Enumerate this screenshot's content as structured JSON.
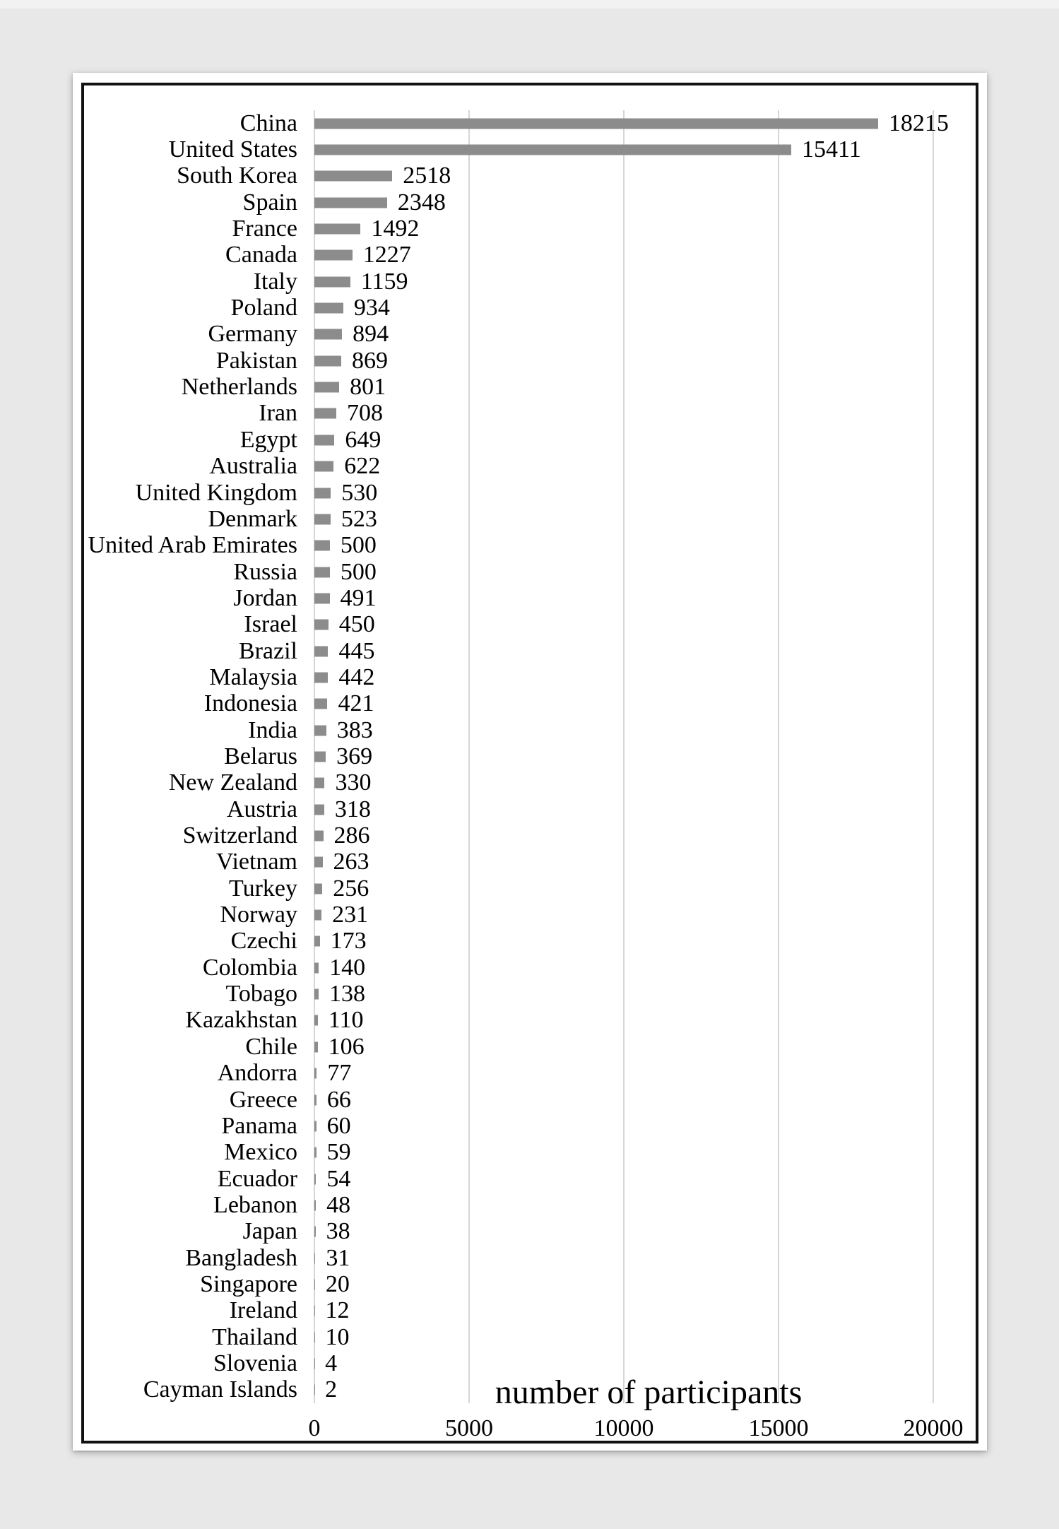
{
  "window": {
    "background_color": "#e8e8e8",
    "card_color": "#ffffff",
    "frame_border_color": "#121212"
  },
  "chart_data": {
    "type": "bar",
    "orientation": "horizontal",
    "title": "",
    "xlabel": "number of participants",
    "ylabel": "",
    "xlim": [
      0,
      20000
    ],
    "x_ticks": [
      0,
      5000,
      10000,
      15000,
      20000
    ],
    "x_tick_labels": [
      "0",
      "5000",
      "10000",
      "15000",
      "20000"
    ],
    "grid": true,
    "legend": false,
    "value_labels_shown": true,
    "bar_color": "#8c8c8c",
    "gridline_color": "#d6d6d6",
    "categories": [
      "China",
      "United States",
      "South Korea",
      "Spain",
      "France",
      "Canada",
      "Italy",
      "Poland",
      "Germany",
      "Pakistan",
      "Netherlands",
      "Iran",
      "Egypt",
      "Australia",
      "United Kingdom",
      "Denmark",
      "United Arab Emirates",
      "Russia",
      "Jordan",
      "Israel",
      "Brazil",
      "Malaysia",
      "Indonesia",
      "India",
      "Belarus",
      "New Zealand",
      "Austria",
      "Switzerland",
      "Vietnam",
      "Turkey",
      "Norway",
      "Czechi",
      "Colombia",
      "Tobago",
      "Kazakhstan",
      "Chile",
      "Andorra",
      "Greece",
      "Panama",
      "Mexico",
      "Ecuador",
      "Lebanon",
      "Japan",
      "Bangladesh",
      "Singapore",
      "Ireland",
      "Thailand",
      "Slovenia",
      "Cayman Islands"
    ],
    "values": [
      18215,
      15411,
      2518,
      2348,
      1492,
      1227,
      1159,
      934,
      894,
      869,
      801,
      708,
      649,
      622,
      530,
      523,
      500,
      500,
      491,
      450,
      445,
      442,
      421,
      383,
      369,
      330,
      318,
      286,
      263,
      256,
      231,
      173,
      140,
      138,
      110,
      106,
      77,
      66,
      60,
      59,
      54,
      48,
      38,
      31,
      20,
      12,
      10,
      4,
      2
    ]
  }
}
